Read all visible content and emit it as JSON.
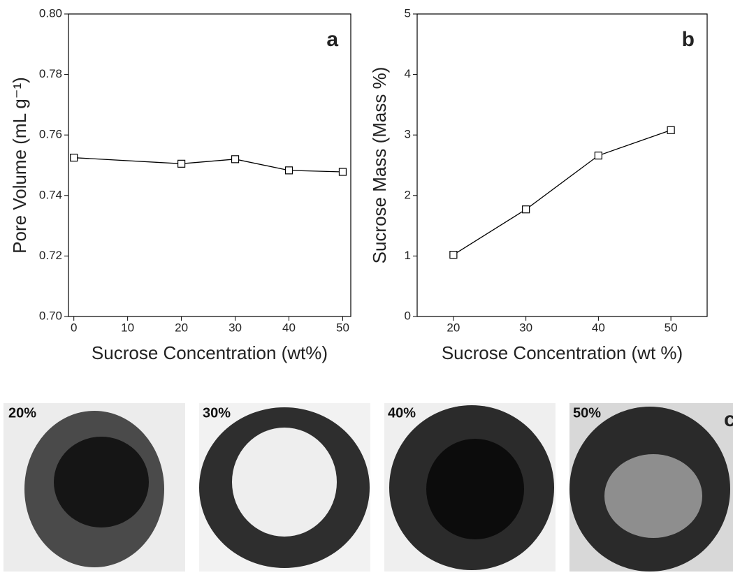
{
  "chart_data": [
    {
      "type": "line",
      "panel_label": "a",
      "x_label": "Sucrose Concentration (wt%)",
      "y_label": "Pore Volume (mL g⁻¹)",
      "x": [
        0,
        20,
        30,
        40,
        50
      ],
      "values": [
        0.7525,
        0.7505,
        0.752,
        0.7483,
        0.7478
      ],
      "color": "#000000",
      "xlim": [
        -1,
        51.5
      ],
      "xticks": [
        0,
        10,
        20,
        30,
        40,
        50
      ],
      "ylim": [
        0.7,
        0.8
      ],
      "yticks": [
        {
          "value": 0.7,
          "label": "0.70"
        },
        {
          "value": 0.72,
          "label": "0.72"
        },
        {
          "value": 0.74,
          "label": "0.74"
        },
        {
          "value": 0.76,
          "label": "0.76"
        },
        {
          "value": 0.78,
          "label": "0.78"
        },
        {
          "value": 0.8,
          "label": "0.80"
        }
      ]
    },
    {
      "type": "line",
      "panel_label": "b",
      "x_label": "Sucrose Concentration (wt %)",
      "y_label": "Sucrose Mass (Mass %)",
      "x": [
        20,
        30,
        40,
        50
      ],
      "values": [
        1.02,
        1.77,
        2.66,
        3.08
      ],
      "color": "#000000",
      "xlim": [
        15,
        55
      ],
      "xticks": [
        20,
        30,
        40,
        50
      ],
      "ylim": [
        0,
        5
      ],
      "yticks": [
        0,
        1,
        2,
        3,
        4,
        5
      ]
    }
  ],
  "photos": {
    "panel_label": "c",
    "items": [
      "20%",
      "30%",
      "40%",
      "50%"
    ]
  }
}
